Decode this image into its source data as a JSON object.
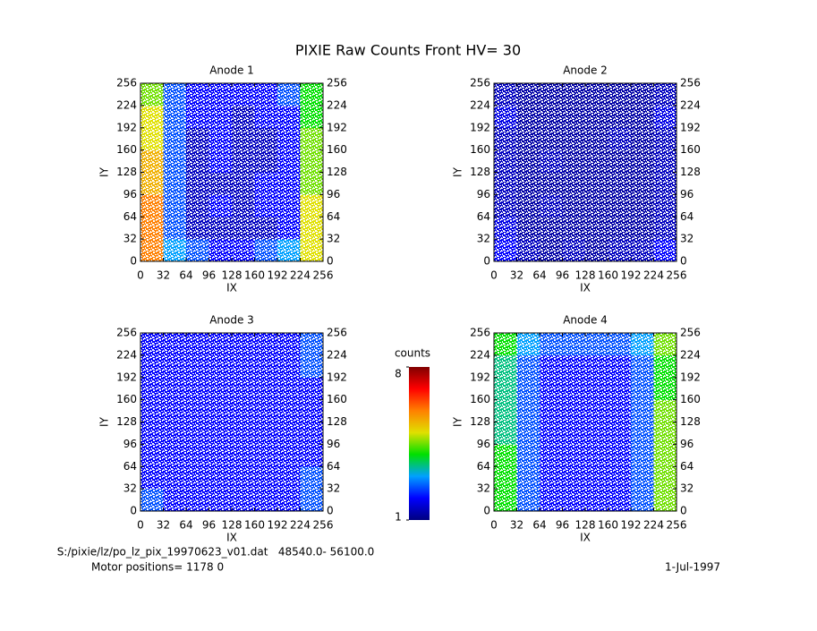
{
  "chart_data": {
    "type": "heatmap",
    "title": "PIXIE Raw Counts Front HV= 30",
    "xlabel": "IX",
    "ylabel": "IY",
    "xlim": [
      0,
      256
    ],
    "ylim": [
      0,
      256
    ],
    "xticks": [
      0,
      32,
      64,
      96,
      128,
      160,
      192,
      224,
      256
    ],
    "yticks": [
      0,
      32,
      64,
      96,
      128,
      160,
      192,
      224,
      256
    ],
    "colormap": [
      "#000080",
      "#0000ff",
      "#00a0ff",
      "#00e000",
      "#e0e000",
      "#ff8000",
      "#ff0000",
      "#800000"
    ],
    "colorbar": {
      "label": "counts",
      "zlim": [
        1,
        8
      ],
      "ticks": [
        1,
        8
      ]
    },
    "panels": [
      {
        "title": "Anode 1",
        "z": [
          [
            6,
            3,
            2.5,
            2,
            2,
            2.5,
            3,
            5
          ],
          [
            6,
            2.5,
            1.5,
            1.5,
            1.5,
            1.5,
            2,
            5
          ],
          [
            6,
            2.5,
            1.5,
            2,
            1.5,
            2,
            2,
            5
          ],
          [
            5.5,
            2.5,
            1.5,
            1.5,
            1.5,
            2,
            2,
            4.5
          ],
          [
            5.5,
            2.5,
            1.5,
            2,
            1.5,
            1.5,
            2,
            4.5
          ],
          [
            5,
            2.5,
            1.5,
            2,
            1.5,
            1.5,
            2,
            4.5
          ],
          [
            5,
            2.5,
            2,
            2,
            1.5,
            2,
            2,
            4
          ],
          [
            4.5,
            2.5,
            2,
            2,
            2,
            2,
            2.5,
            4
          ]
        ]
      },
      {
        "title": "Anode 2",
        "z": [
          [
            2,
            1.5,
            1.3,
            1.5,
            1.3,
            1.5,
            1.5,
            2
          ],
          [
            1.8,
            1.3,
            1.3,
            1.3,
            1.3,
            1.3,
            1.3,
            1.5
          ],
          [
            1.5,
            1.3,
            1.5,
            1.3,
            1.3,
            1.3,
            1.3,
            1.5
          ],
          [
            1.5,
            1.3,
            1.3,
            1.3,
            1.3,
            1.3,
            1.3,
            1.5
          ],
          [
            1.5,
            1.3,
            1.5,
            1.3,
            1.3,
            1.3,
            1.3,
            1.5
          ],
          [
            1.5,
            1.3,
            1.3,
            1.3,
            1.3,
            1.5,
            1.3,
            1.5
          ],
          [
            1.8,
            1.3,
            1.3,
            1.3,
            1.3,
            1.3,
            1.3,
            1.8
          ],
          [
            1.5,
            1.3,
            1.3,
            1.3,
            1.3,
            1.3,
            1.3,
            1.5
          ]
        ]
      },
      {
        "title": "Anode 3",
        "z": [
          [
            2.5,
            2,
            2,
            2,
            2,
            2,
            2,
            2.5
          ],
          [
            2,
            2,
            2,
            2,
            2,
            2,
            2,
            2.5
          ],
          [
            2,
            2,
            2,
            2,
            2,
            2,
            2,
            2
          ],
          [
            2,
            2,
            2,
            2,
            2,
            2,
            2,
            2
          ],
          [
            2,
            2,
            2,
            2,
            2,
            2,
            2,
            2
          ],
          [
            2,
            2,
            2,
            2,
            2,
            2,
            2,
            2
          ],
          [
            2,
            2,
            2,
            2,
            2,
            2,
            2,
            2.5
          ],
          [
            2,
            2,
            2,
            2,
            2,
            2,
            2,
            2.5
          ]
        ]
      },
      {
        "title": "Anode 4",
        "z": [
          [
            4,
            2.5,
            2,
            2,
            2,
            2,
            2.5,
            4.5
          ],
          [
            4,
            2.5,
            2,
            2,
            2,
            2,
            2.5,
            4.5
          ],
          [
            4,
            2.5,
            2,
            2,
            2,
            2,
            2.5,
            4.5
          ],
          [
            3.5,
            2.5,
            2,
            2,
            2,
            2,
            2.5,
            4.5
          ],
          [
            3.5,
            2.5,
            2,
            2,
            2,
            2,
            2.5,
            4.5
          ],
          [
            3.5,
            2.5,
            2,
            2,
            2,
            2,
            2.5,
            4
          ],
          [
            3.5,
            2.5,
            2,
            2,
            2,
            2,
            2.5,
            4
          ],
          [
            4,
            3,
            2.5,
            2.5,
            2.5,
            2.5,
            3,
            4.5
          ]
        ]
      }
    ],
    "footer": {
      "file": "S:/pixie/lz/po_lz_pix_19970623_v01.dat   48540.0- 56100.0",
      "motor": "Motor positions= 1178 0",
      "date": "1-Jul-1997"
    }
  }
}
